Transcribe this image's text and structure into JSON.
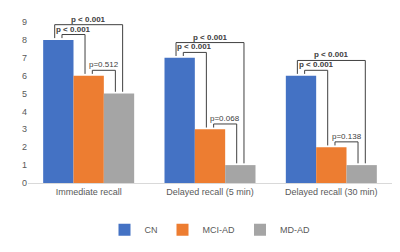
{
  "chart_data": {
    "type": "bar",
    "categories": [
      "Immediate recall",
      "Delayed recall (5 min)",
      "Delayed recall (30 min)"
    ],
    "series": [
      {
        "name": "CN",
        "color": "#4472C4",
        "values": [
          8,
          7,
          6
        ]
      },
      {
        "name": "MCI-AD",
        "color": "#ED7D31",
        "values": [
          6,
          3,
          2
        ]
      },
      {
        "name": "MD-AD",
        "color": "#A5A5A5",
        "values": [
          5,
          1,
          1
        ]
      }
    ],
    "ylim": [
      0,
      9
    ],
    "yticks": [
      0,
      1,
      2,
      3,
      4,
      5,
      6,
      7,
      8,
      9
    ],
    "grid": false,
    "legend": "bottom",
    "comparisons": [
      {
        "category": "Immediate recall",
        "groups": [
          "CN",
          "MCI-AD"
        ],
        "label": "p < 0.001"
      },
      {
        "category": "Immediate recall",
        "groups": [
          "CN",
          "MD-AD"
        ],
        "label": "p < 0.001"
      },
      {
        "category": "Immediate recall",
        "groups": [
          "MCI-AD",
          "MD-AD"
        ],
        "label": "p=0.512"
      },
      {
        "category": "Delayed recall (5 min)",
        "groups": [
          "CN",
          "MCI-AD"
        ],
        "label": "p < 0.001"
      },
      {
        "category": "Delayed recall (5 min)",
        "groups": [
          "CN",
          "MD-AD"
        ],
        "label": "p < 0.001"
      },
      {
        "category": "Delayed recall (5 min)",
        "groups": [
          "MCI-AD",
          "MD-AD"
        ],
        "label": "p=0.068"
      },
      {
        "category": "Delayed recall (30 min)",
        "groups": [
          "CN",
          "MCI-AD"
        ],
        "label": "p < 0.001"
      },
      {
        "category": "Delayed recall (30 min)",
        "groups": [
          "CN",
          "MD-AD"
        ],
        "label": "p < 0.001"
      },
      {
        "category": "Delayed recall (30 min)",
        "groups": [
          "MCI-AD",
          "MD-AD"
        ],
        "label": "p=0.138"
      }
    ]
  }
}
